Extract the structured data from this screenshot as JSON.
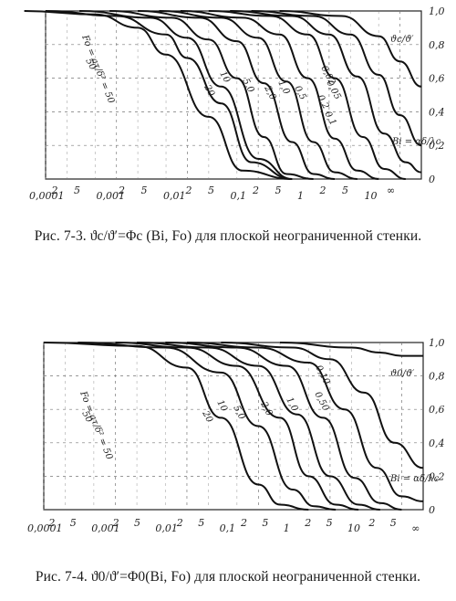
{
  "chart_data": [
    {
      "type": "line",
      "title": "",
      "caption": "Рис. 7-3. ϑc/ϑ′=Φc (Bi, Fo) для плоской неограниченной стенки.",
      "xlabel": "Bi",
      "ylabel": "ϑc/ϑ′",
      "x_scale": "log",
      "xlim": [
        0.0001,
        20
      ],
      "ylim": [
        0,
        1.0
      ],
      "x_tick_labels": [
        "0,0001",
        "2",
        "5",
        "0,001",
        "2",
        "5",
        "0,01",
        "2",
        "5",
        "0,1",
        "2",
        "5",
        "1",
        "2",
        "5",
        "10",
        "∞"
      ],
      "y_tick_labels": [
        "0",
        "0,2",
        "0,4",
        "0,6",
        "0,8",
        "1,0"
      ],
      "fo_label": "Fo = aτ/δ² = 50",
      "bi_label": "Bi = αδ/λc",
      "series": [
        {
          "name": "50",
          "x": [
            5e-05,
            0.0005,
            0.002,
            0.005,
            0.02,
            0.06,
            0.3
          ],
          "y": [
            1.0,
            0.98,
            0.9,
            0.74,
            0.37,
            0.05,
            0.0
          ]
        },
        {
          "name": "20",
          "x": [
            0.0001,
            0.001,
            0.005,
            0.01,
            0.03,
            0.08,
            0.3
          ],
          "y": [
            1.0,
            0.97,
            0.86,
            0.72,
            0.45,
            0.1,
            0.0
          ]
        },
        {
          "name": "10",
          "x": [
            0.0003,
            0.003,
            0.01,
            0.03,
            0.1,
            0.3
          ],
          "y": [
            1.0,
            0.96,
            0.84,
            0.55,
            0.12,
            0.0
          ]
        },
        {
          "name": "5,0",
          "x": [
            0.0008,
            0.006,
            0.02,
            0.05,
            0.12,
            0.25,
            0.6
          ],
          "y": [
            1.0,
            0.96,
            0.83,
            0.6,
            0.25,
            0.03,
            0.0
          ]
        },
        {
          "name": "2,0",
          "x": [
            0.002,
            0.015,
            0.05,
            0.12,
            0.3,
            0.6,
            1.2
          ],
          "y": [
            1.0,
            0.96,
            0.82,
            0.57,
            0.22,
            0.03,
            0.0
          ]
        },
        {
          "name": "1,0",
          "x": [
            0.004,
            0.03,
            0.1,
            0.25,
            0.6,
            1.2,
            2.5
          ],
          "y": [
            1.0,
            0.96,
            0.84,
            0.58,
            0.22,
            0.04,
            0.0
          ]
        },
        {
          "name": "0,5",
          "x": [
            0.008,
            0.06,
            0.2,
            0.5,
            1.2,
            2.5,
            5
          ],
          "y": [
            1.0,
            0.96,
            0.86,
            0.6,
            0.24,
            0.05,
            0.0
          ]
        },
        {
          "name": "0,2",
          "x": [
            0.02,
            0.15,
            0.5,
            1.2,
            3,
            6,
            12
          ],
          "y": [
            1.0,
            0.97,
            0.86,
            0.6,
            0.25,
            0.06,
            0.0
          ]
        },
        {
          "name": "0,1",
          "x": [
            0.04,
            0.3,
            1,
            2.5,
            6,
            12,
            20
          ],
          "y": [
            1.0,
            0.97,
            0.86,
            0.61,
            0.27,
            0.1,
            0.04
          ]
        },
        {
          "name": "0,05",
          "x": [
            0.08,
            0.6,
            2,
            5,
            10,
            20
          ],
          "y": [
            1.0,
            0.97,
            0.86,
            0.62,
            0.38,
            0.2
          ]
        },
        {
          "name": "0,02",
          "x": [
            0.2,
            1.5,
            5,
            10,
            20
          ],
          "y": [
            1.0,
            0.97,
            0.85,
            0.7,
            0.55
          ]
        }
      ]
    },
    {
      "type": "line",
      "title": "",
      "caption": "Рис. 7-4. ϑ0/ϑ′=Φ0(Bi, Fo) для плоской неограниченной стенки.",
      "xlabel": "Bi",
      "ylabel": "ϑ0/ϑ′",
      "x_scale": "log",
      "xlim": [
        0.0001,
        20
      ],
      "ylim": [
        0,
        1.0
      ],
      "x_tick_labels": [
        "0,0001",
        "2",
        "5",
        "0,001",
        "2",
        "5",
        "0,01",
        "2",
        "5",
        "0,1",
        "2",
        "5",
        "1",
        "2",
        "5",
        "10",
        "2",
        "5",
        "∞"
      ],
      "y_tick_labels": [
        "0",
        "0,2",
        "0,4",
        "0,6",
        "0,8",
        "1,0"
      ],
      "fo_label": "Fo = aτ/δ² = 50",
      "bi_label": "Bi = αδ/λc",
      "series": [
        {
          "name": "50",
          "x": [
            0.0001,
            0.002,
            0.01,
            0.03,
            0.1,
            0.2,
            0.5
          ],
          "y": [
            1.0,
            0.98,
            0.85,
            0.55,
            0.15,
            0.03,
            0.0
          ]
        },
        {
          "name": "20",
          "x": [
            0.0003,
            0.005,
            0.03,
            0.1,
            0.3,
            0.6,
            1.2
          ],
          "y": [
            1.0,
            0.97,
            0.82,
            0.5,
            0.12,
            0.02,
            0.0
          ]
        },
        {
          "name": "10",
          "x": [
            0.001,
            0.01,
            0.05,
            0.2,
            0.5,
            1.2,
            2.5
          ],
          "y": [
            1.0,
            0.97,
            0.86,
            0.55,
            0.2,
            0.03,
            0.0
          ]
        },
        {
          "name": "5,0",
          "x": [
            0.002,
            0.02,
            0.1,
            0.35,
            1,
            2.5,
            5
          ],
          "y": [
            1.0,
            0.97,
            0.86,
            0.57,
            0.2,
            0.03,
            0.0
          ]
        },
        {
          "name": "2,0",
          "x": [
            0.005,
            0.05,
            0.25,
            0.8,
            2.2,
            5,
            10
          ],
          "y": [
            1.0,
            0.97,
            0.86,
            0.55,
            0.19,
            0.04,
            0.0
          ]
        },
        {
          "name": "1,0",
          "x": [
            0.01,
            0.1,
            0.5,
            1.6,
            4.5,
            10,
            20
          ],
          "y": [
            1.0,
            0.97,
            0.88,
            0.6,
            0.25,
            0.08,
            0.05
          ]
        },
        {
          "name": "0,50",
          "x": [
            0.03,
            0.3,
            1,
            3,
            8,
            20
          ],
          "y": [
            1.0,
            0.97,
            0.9,
            0.7,
            0.4,
            0.25
          ]
        },
        {
          "name": "0,10",
          "x": [
            0.2,
            2,
            5,
            10,
            20
          ],
          "y": [
            1.0,
            0.97,
            0.94,
            0.92,
            0.92
          ]
        }
      ]
    }
  ]
}
